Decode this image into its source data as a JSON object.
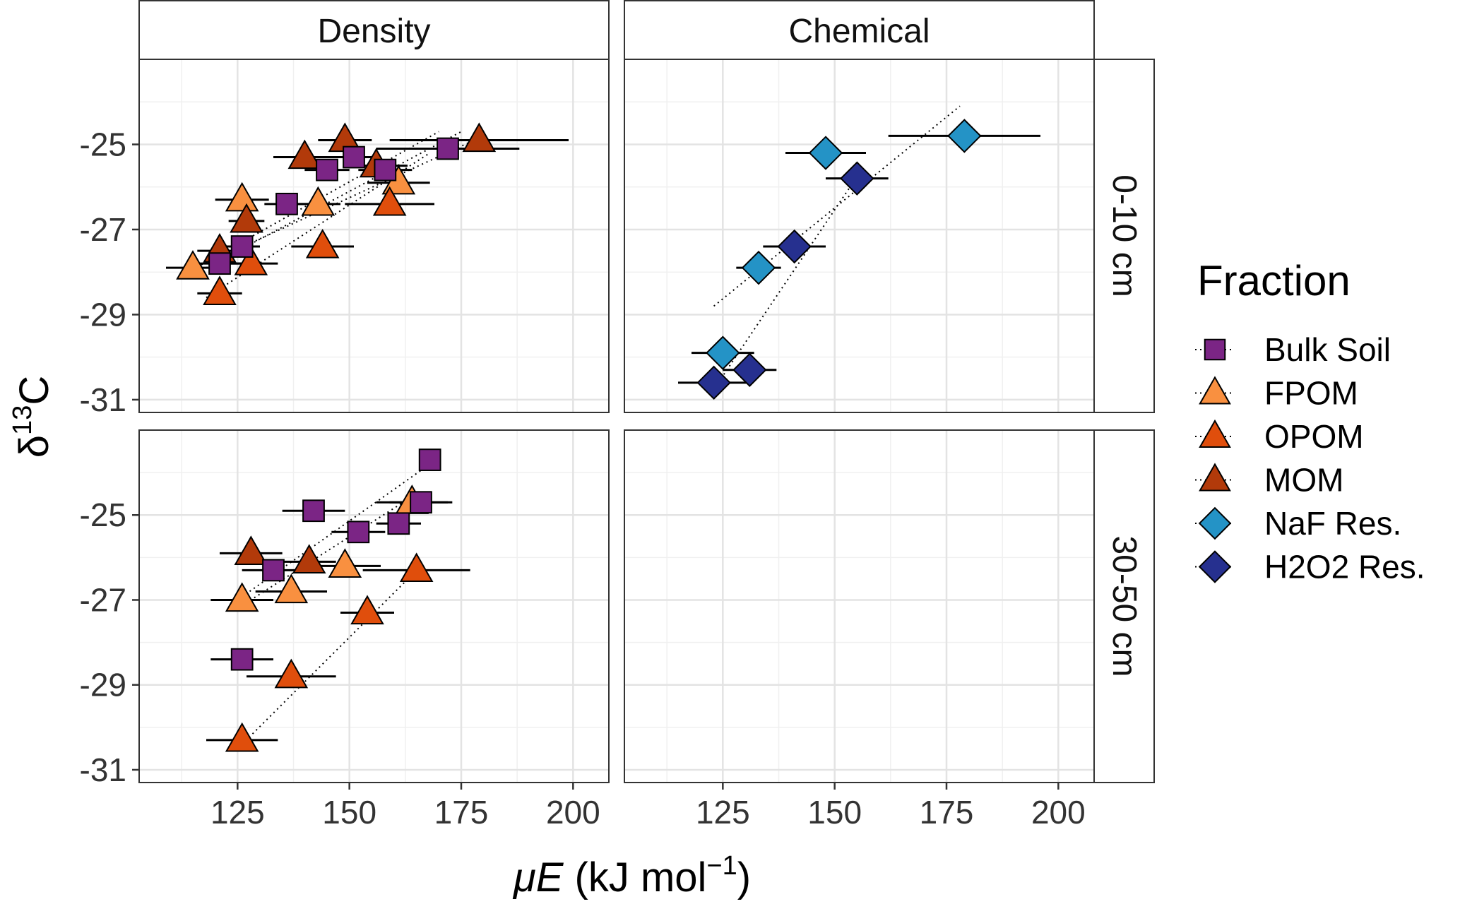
{
  "chart_data": {
    "type": "scatter",
    "facet_columns": [
      "Density",
      "Chemical"
    ],
    "facet_rows": [
      "0-10 cm",
      "30-50 cm"
    ],
    "xlabel": "μE (kJ  mol⁻¹)",
    "xlabel_parts": {
      "mu": "μE",
      "unit_open": " (kJ  mol",
      "sup": "−1",
      "unit_close": ")"
    },
    "ylabel": "δ13C",
    "ylabel_parts": {
      "delta": "δ",
      "sup": "13",
      "element": "C"
    },
    "xlim": [
      103,
      208
    ],
    "ylim": [
      -31.3,
      -23.0
    ],
    "x_ticks": [
      125,
      150,
      175,
      200
    ],
    "x_tick_labels": [
      "125",
      "150",
      "175",
      "200"
    ],
    "y_ticks": [
      -25,
      -27,
      -29,
      -31
    ],
    "y_tick_labels": [
      "-25",
      "-27",
      "-29",
      "-31"
    ],
    "legend": {
      "title": "Fraction",
      "position": "right",
      "entries": [
        {
          "name": "Bulk Soil",
          "shape": "square",
          "color": "#7B2585"
        },
        {
          "name": "FPOM",
          "shape": "triangle",
          "color": "#F99040"
        },
        {
          "name": "OPOM",
          "shape": "triangle",
          "color": "#E04E0C"
        },
        {
          "name": "MOM",
          "shape": "triangle",
          "color": "#B23A0A"
        },
        {
          "name": "NaF Res.",
          "shape": "diamond",
          "color": "#2493C6"
        },
        {
          "name": "H2O2 Res.",
          "shape": "diamond",
          "color": "#26308F"
        }
      ]
    },
    "panels": [
      {
        "column": "Density",
        "row": "0-10 cm",
        "points": [
          {
            "fraction": "FPOM",
            "x": 115,
            "y": -27.9,
            "xerr": 6
          },
          {
            "fraction": "FPOM",
            "x": 126,
            "y": -26.3,
            "xerr": 6
          },
          {
            "fraction": "FPOM",
            "x": 143,
            "y": -26.4,
            "xerr": 5
          },
          {
            "fraction": "FPOM",
            "x": 161,
            "y": -25.9,
            "xerr": 7
          },
          {
            "fraction": "OPOM",
            "x": 121,
            "y": -28.5,
            "xerr": 5
          },
          {
            "fraction": "OPOM",
            "x": 128,
            "y": -27.8,
            "xerr": 6
          },
          {
            "fraction": "OPOM",
            "x": 144,
            "y": -27.4,
            "xerr": 7
          },
          {
            "fraction": "OPOM",
            "x": 159,
            "y": -26.4,
            "xerr": 10
          },
          {
            "fraction": "MOM",
            "x": 121,
            "y": -27.5,
            "xerr": 5
          },
          {
            "fraction": "MOM",
            "x": 127,
            "y": -26.8,
            "xerr": 4
          },
          {
            "fraction": "MOM",
            "x": 140,
            "y": -25.3,
            "xerr": 7
          },
          {
            "fraction": "MOM",
            "x": 149,
            "y": -24.9,
            "xerr": 6
          },
          {
            "fraction": "MOM",
            "x": 156,
            "y": -25.5,
            "xerr": 7
          },
          {
            "fraction": "MOM",
            "x": 179,
            "y": -24.9,
            "xerr": 20
          },
          {
            "fraction": "Bulk Soil",
            "x": 121,
            "y": -27.8,
            "xerr": 5
          },
          {
            "fraction": "Bulk Soil",
            "x": 126,
            "y": -27.4,
            "xerr": 4
          },
          {
            "fraction": "Bulk Soil",
            "x": 136,
            "y": -26.4,
            "xerr": 5
          },
          {
            "fraction": "Bulk Soil",
            "x": 145,
            "y": -25.6,
            "xerr": 5
          },
          {
            "fraction": "Bulk Soil",
            "x": 151,
            "y": -25.3,
            "xerr": 5
          },
          {
            "fraction": "Bulk Soil",
            "x": 158,
            "y": -25.6,
            "xerr": 6
          },
          {
            "fraction": "Bulk Soil",
            "x": 172,
            "y": -25.1,
            "xerr": 16
          }
        ],
        "trend_lines": [
          {
            "fraction": "FPOM",
            "from": [
              114,
              -28.0
            ],
            "to": [
              170,
              -24.7
            ]
          },
          {
            "fraction": "OPOM",
            "from": [
              118,
              -28.6
            ],
            "to": [
              168,
              -25.2
            ]
          },
          {
            "fraction": "MOM",
            "from": [
              118,
              -27.8
            ],
            "to": [
              180,
              -24.8
            ]
          },
          {
            "fraction": "Bulk Soil",
            "from": [
              118,
              -27.9
            ],
            "to": [
              175,
              -24.7
            ]
          }
        ]
      },
      {
        "column": "Chemical",
        "row": "0-10 cm",
        "points": [
          {
            "fraction": "NaF Res.",
            "x": 125,
            "y": -29.9,
            "xerr": 7
          },
          {
            "fraction": "NaF Res.",
            "x": 133,
            "y": -27.9,
            "xerr": 5
          },
          {
            "fraction": "NaF Res.",
            "x": 148,
            "y": -25.2,
            "xerr": 9
          },
          {
            "fraction": "NaF Res.",
            "x": 179,
            "y": -24.8,
            "xerr": 17
          },
          {
            "fraction": "H2O2 Res.",
            "x": 123,
            "y": -30.6,
            "xerr": 8
          },
          {
            "fraction": "H2O2 Res.",
            "x": 131,
            "y": -30.3,
            "xerr": 6
          },
          {
            "fraction": "H2O2 Res.",
            "x": 141,
            "y": -27.4,
            "xerr": 7
          },
          {
            "fraction": "H2O2 Res.",
            "x": 155,
            "y": -25.8,
            "xerr": 7
          }
        ],
        "trend_lines": [
          {
            "fraction": "NaF Res.",
            "from": [
              123,
              -28.8
            ],
            "to": [
              178,
              -24.1
            ]
          },
          {
            "fraction": "H2O2 Res.",
            "from": [
              124,
              -30.6
            ],
            "to": [
              156,
              -25.6
            ]
          }
        ]
      },
      {
        "column": "Density",
        "row": "30-50 cm",
        "points": [
          {
            "fraction": "FPOM",
            "x": 126,
            "y": -27.0,
            "xerr": 7
          },
          {
            "fraction": "FPOM",
            "x": 137,
            "y": -26.8,
            "xerr": 8
          },
          {
            "fraction": "FPOM",
            "x": 149,
            "y": -26.2,
            "xerr": 8
          },
          {
            "fraction": "FPOM",
            "x": 164,
            "y": -24.7,
            "xerr": 8
          },
          {
            "fraction": "OPOM",
            "x": 126,
            "y": -30.3,
            "xerr": 8
          },
          {
            "fraction": "OPOM",
            "x": 137,
            "y": -28.8,
            "xerr": 10
          },
          {
            "fraction": "OPOM",
            "x": 154,
            "y": -27.3,
            "xerr": 6
          },
          {
            "fraction": "OPOM",
            "x": 165,
            "y": -26.3,
            "xerr": 12
          },
          {
            "fraction": "MOM",
            "x": 128,
            "y": -25.9,
            "xerr": 7
          },
          {
            "fraction": "MOM",
            "x": 141,
            "y": -26.1,
            "xerr": 6
          },
          {
            "fraction": "Bulk Soil",
            "x": 126,
            "y": -28.4,
            "xerr": 7
          },
          {
            "fraction": "Bulk Soil",
            "x": 133,
            "y": -26.3,
            "xerr": 7
          },
          {
            "fraction": "Bulk Soil",
            "x": 142,
            "y": -24.9,
            "xerr": 7
          },
          {
            "fraction": "Bulk Soil",
            "x": 152,
            "y": -25.4,
            "xerr": 6
          },
          {
            "fraction": "Bulk Soil",
            "x": 161,
            "y": -25.2,
            "xerr": 5
          },
          {
            "fraction": "Bulk Soil",
            "x": 166,
            "y": -24.7,
            "xerr": 7
          },
          {
            "fraction": "Bulk Soil",
            "x": 168,
            "y": -23.7,
            "xerr": 0
          }
        ],
        "trend_lines": [
          {
            "fraction": "OPOM",
            "from": [
              126,
              -30.4
            ],
            "to": [
              166,
              -26.2
            ]
          },
          {
            "fraction": "FPOM",
            "from": [
              125,
              -27.2
            ],
            "to": [
              165,
              -24.5
            ]
          },
          {
            "fraction": "Bulk Soil",
            "from": [
              125,
              -27.0
            ],
            "to": [
              168,
              -23.8
            ]
          }
        ]
      },
      {
        "column": "Chemical",
        "row": "30-50 cm",
        "points": [],
        "trend_lines": []
      }
    ]
  }
}
